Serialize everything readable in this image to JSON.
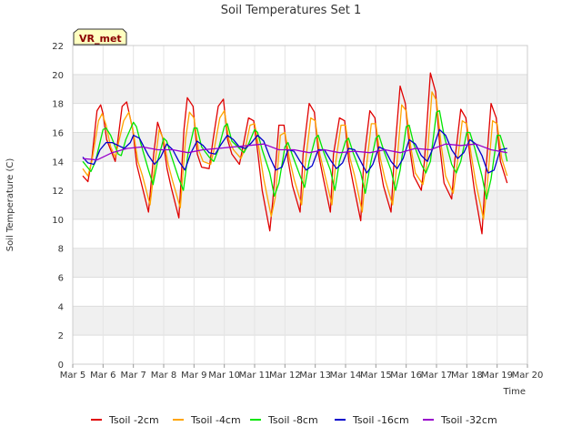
{
  "chart_data": {
    "type": "line",
    "title": "Soil Temperatures Set 1",
    "xlabel": "Time",
    "ylabel": "Soil Temperature (C)",
    "badge": "VR_met",
    "ylim": [
      0,
      22
    ],
    "yticks": [
      0,
      2,
      4,
      6,
      8,
      10,
      12,
      14,
      16,
      18,
      20,
      22
    ],
    "xlim": [
      5,
      20
    ],
    "xticks": [
      {
        "value": 5,
        "label": "Mar 5"
      },
      {
        "value": 6,
        "label": "Mar 6"
      },
      {
        "value": 7,
        "label": "Mar 7"
      },
      {
        "value": 8,
        "label": "Mar 8"
      },
      {
        "value": 9,
        "label": "Mar 9"
      },
      {
        "value": 10,
        "label": "Mar 10"
      },
      {
        "value": 11,
        "label": "Mar 11"
      },
      {
        "value": 12,
        "label": "Mar 12"
      },
      {
        "value": 13,
        "label": "Mar 13"
      },
      {
        "value": 14,
        "label": "Mar 14"
      },
      {
        "value": 15,
        "label": "Mar 15"
      },
      {
        "value": 16,
        "label": "Mar 16"
      },
      {
        "value": 17,
        "label": "Mar 17"
      },
      {
        "value": 18,
        "label": "Mar 18"
      },
      {
        "value": 19,
        "label": "Mar 19"
      },
      {
        "value": 20,
        "label": "Mar 20"
      }
    ],
    "grid": true,
    "legend_position": "bottom",
    "series": [
      {
        "name": "Tsoil -2cm",
        "color": "#e00000",
        "x": [
          5.33,
          5.5,
          5.63,
          5.8,
          5.92,
          6.0,
          6.12,
          6.4,
          6.63,
          6.78,
          6.98,
          7.11,
          7.25,
          7.5,
          7.67,
          7.8,
          7.97,
          8.11,
          8.25,
          8.5,
          8.67,
          8.78,
          8.97,
          9.11,
          9.25,
          9.5,
          9.63,
          9.8,
          9.97,
          10.11,
          10.25,
          10.5,
          10.63,
          10.8,
          10.97,
          11.11,
          11.25,
          11.5,
          11.6,
          11.8,
          11.97,
          12.11,
          12.25,
          12.5,
          12.6,
          12.8,
          12.97,
          13.11,
          13.25,
          13.5,
          13.6,
          13.8,
          13.97,
          14.11,
          14.25,
          14.5,
          14.6,
          14.8,
          14.97,
          15.11,
          15.25,
          15.5,
          15.6,
          15.8,
          15.97,
          16.11,
          16.25,
          16.5,
          16.6,
          16.8,
          16.97,
          17.11,
          17.25,
          17.5,
          17.6,
          17.8,
          17.97,
          18.11,
          18.25,
          18.5,
          18.6,
          18.8,
          18.97,
          19.11,
          19.33
        ],
        "y": [
          13.0,
          12.6,
          14.2,
          17.5,
          17.9,
          17.3,
          15.5,
          14.0,
          17.8,
          18.1,
          16.2,
          13.8,
          12.6,
          10.5,
          14.5,
          16.7,
          15.6,
          13.5,
          12.2,
          10.1,
          16.2,
          18.4,
          17.8,
          14.5,
          13.6,
          13.5,
          15.5,
          17.8,
          18.3,
          15.5,
          14.5,
          13.8,
          15.2,
          17.0,
          16.8,
          14.5,
          12.0,
          9.2,
          11.3,
          16.5,
          16.5,
          14.0,
          12.3,
          10.5,
          14.5,
          18.0,
          17.4,
          14.5,
          13.0,
          10.5,
          14.5,
          17.0,
          16.8,
          14.0,
          12.5,
          9.9,
          14.0,
          17.5,
          17.0,
          14.0,
          12.3,
          10.5,
          14.0,
          19.2,
          18.0,
          15.0,
          13.0,
          12.0,
          14.0,
          20.1,
          18.8,
          15.0,
          12.5,
          11.4,
          14.0,
          17.6,
          17.0,
          14.2,
          12.0,
          9.0,
          12.5,
          18.0,
          17.0,
          14.0,
          12.5
        ]
      },
      {
        "name": "Tsoil -4cm",
        "color": "#ffa500",
        "x": [
          5.33,
          5.5,
          5.63,
          5.85,
          5.97,
          6.1,
          6.25,
          6.4,
          6.68,
          6.85,
          7.0,
          7.15,
          7.3,
          7.55,
          7.72,
          7.85,
          8.0,
          8.15,
          8.3,
          8.55,
          8.72,
          8.85,
          9.0,
          9.15,
          9.3,
          9.55,
          9.68,
          9.85,
          10.0,
          10.15,
          10.3,
          10.55,
          10.7,
          10.85,
          11.0,
          11.15,
          11.3,
          11.55,
          11.68,
          11.85,
          12.0,
          12.15,
          12.3,
          12.55,
          12.68,
          12.85,
          13.0,
          13.15,
          13.3,
          13.55,
          13.68,
          13.85,
          14.0,
          14.15,
          14.3,
          14.55,
          14.68,
          14.85,
          15.0,
          15.15,
          15.3,
          15.55,
          15.68,
          15.85,
          16.0,
          16.15,
          16.3,
          16.55,
          16.68,
          16.85,
          17.0,
          17.15,
          17.3,
          17.55,
          17.68,
          17.85,
          18.0,
          18.15,
          18.3,
          18.55,
          18.68,
          18.85,
          19.0,
          19.15,
          19.33
        ],
        "y": [
          13.5,
          13.0,
          14.0,
          16.8,
          17.3,
          16.5,
          15.0,
          14.3,
          16.8,
          17.4,
          16.0,
          14.0,
          13.0,
          11.0,
          14.0,
          16.2,
          15.5,
          13.8,
          12.6,
          10.8,
          15.5,
          17.4,
          17.0,
          14.8,
          14.0,
          13.8,
          15.0,
          17.0,
          17.5,
          15.5,
          14.8,
          14.2,
          15.0,
          16.5,
          16.6,
          14.8,
          12.8,
          10.2,
          11.5,
          15.8,
          16.0,
          14.2,
          12.8,
          11.0,
          14.0,
          17.0,
          16.8,
          14.5,
          13.2,
          11.0,
          14.0,
          16.5,
          16.5,
          14.2,
          13.0,
          10.5,
          13.5,
          16.6,
          16.6,
          14.2,
          12.8,
          11.0,
          13.5,
          17.9,
          17.5,
          15.0,
          13.2,
          12.4,
          13.8,
          18.8,
          18.2,
          15.2,
          13.0,
          11.8,
          13.8,
          16.8,
          16.6,
          14.4,
          12.5,
          10.0,
          12.5,
          16.8,
          16.6,
          14.2,
          13.0
        ]
      },
      {
        "name": "Tsoil -8cm",
        "color": "#00e600",
        "x": [
          5.33,
          5.6,
          5.75,
          6.0,
          6.1,
          6.25,
          6.5,
          6.6,
          6.75,
          7.0,
          7.1,
          7.25,
          7.5,
          7.65,
          7.8,
          8.0,
          8.1,
          8.25,
          8.5,
          8.65,
          8.8,
          9.0,
          9.1,
          9.25,
          9.5,
          9.65,
          9.8,
          10.0,
          10.1,
          10.25,
          10.5,
          10.65,
          10.8,
          11.0,
          11.1,
          11.25,
          11.5,
          11.65,
          11.8,
          12.0,
          12.1,
          12.25,
          12.5,
          12.65,
          12.8,
          13.0,
          13.1,
          13.25,
          13.5,
          13.65,
          13.8,
          14.0,
          14.1,
          14.25,
          14.5,
          14.65,
          14.8,
          15.0,
          15.1,
          15.25,
          15.5,
          15.65,
          15.8,
          16.0,
          16.1,
          16.25,
          16.5,
          16.65,
          16.8,
          17.0,
          17.1,
          17.25,
          17.5,
          17.65,
          17.8,
          18.0,
          18.1,
          18.25,
          18.5,
          18.65,
          18.8,
          19.0,
          19.1,
          19.25,
          19.33
        ],
        "y": [
          14.0,
          13.3,
          14.0,
          16.2,
          16.3,
          15.8,
          14.5,
          14.4,
          15.5,
          16.7,
          16.4,
          15.2,
          13.4,
          12.4,
          14.0,
          15.6,
          15.4,
          14.4,
          12.8,
          12.0,
          14.5,
          16.3,
          16.3,
          15.0,
          14.3,
          14.0,
          14.8,
          16.4,
          16.6,
          15.4,
          14.9,
          14.6,
          15.2,
          16.2,
          16.0,
          14.8,
          13.2,
          11.6,
          12.5,
          15.0,
          15.3,
          14.4,
          13.0,
          12.2,
          14.0,
          15.6,
          15.8,
          14.8,
          13.4,
          12.0,
          14.0,
          15.4,
          15.6,
          14.6,
          13.2,
          11.8,
          13.6,
          15.6,
          15.8,
          14.8,
          13.4,
          12.0,
          13.4,
          16.4,
          16.5,
          15.2,
          13.8,
          13.2,
          14.0,
          17.4,
          17.5,
          15.8,
          13.8,
          13.2,
          14.0,
          16.0,
          16.0,
          15.0,
          13.0,
          11.4,
          12.8,
          15.8,
          15.8,
          14.8,
          14.0
        ]
      },
      {
        "name": "Tsoil -16cm",
        "color": "#0000cc",
        "x": [
          5.33,
          5.5,
          5.7,
          5.9,
          6.1,
          6.3,
          6.5,
          6.7,
          6.9,
          7.0,
          7.2,
          7.5,
          7.7,
          7.9,
          8.1,
          8.3,
          8.5,
          8.7,
          8.9,
          9.1,
          9.3,
          9.5,
          9.7,
          9.9,
          10.1,
          10.3,
          10.5,
          10.7,
          10.9,
          11.1,
          11.3,
          11.5,
          11.7,
          11.9,
          12.1,
          12.3,
          12.5,
          12.7,
          12.9,
          13.1,
          13.3,
          13.5,
          13.7,
          13.9,
          14.1,
          14.3,
          14.5,
          14.7,
          14.9,
          15.1,
          15.3,
          15.5,
          15.7,
          15.9,
          16.1,
          16.3,
          16.5,
          16.7,
          16.9,
          17.1,
          17.3,
          17.5,
          17.7,
          17.9,
          18.1,
          18.3,
          18.5,
          18.7,
          18.9,
          19.1,
          19.33
        ],
        "y": [
          14.3,
          13.9,
          13.8,
          14.8,
          15.3,
          15.3,
          15.1,
          14.9,
          15.3,
          15.8,
          15.6,
          14.4,
          13.8,
          14.3,
          15.2,
          14.8,
          14.0,
          13.4,
          14.6,
          15.4,
          15.1,
          14.6,
          14.5,
          15.2,
          15.8,
          15.5,
          15.0,
          14.9,
          15.3,
          15.8,
          15.4,
          14.3,
          13.4,
          13.6,
          14.8,
          14.7,
          14.0,
          13.4,
          13.7,
          14.8,
          14.8,
          14.1,
          13.5,
          13.9,
          14.9,
          14.8,
          14.0,
          13.2,
          13.8,
          15.0,
          14.8,
          14.0,
          13.5,
          14.2,
          15.5,
          15.2,
          14.4,
          14.0,
          15.0,
          16.2,
          15.8,
          14.8,
          14.2,
          14.6,
          15.5,
          15.2,
          14.4,
          13.2,
          13.4,
          14.8,
          14.9
        ]
      },
      {
        "name": "Tsoil -32cm",
        "color": "#9900cc",
        "x": [
          5.33,
          5.8,
          6.3,
          6.8,
          7.3,
          7.8,
          8.3,
          8.8,
          9.3,
          9.8,
          10.3,
          10.8,
          11.3,
          11.8,
          12.3,
          12.8,
          13.3,
          13.8,
          14.3,
          14.8,
          15.3,
          15.8,
          16.3,
          16.8,
          17.3,
          17.8,
          18.3,
          18.8,
          19.33
        ],
        "y": [
          14.2,
          14.1,
          14.6,
          14.9,
          15.0,
          14.8,
          14.8,
          14.6,
          14.8,
          14.9,
          15.0,
          15.1,
          15.2,
          14.8,
          14.8,
          14.6,
          14.8,
          14.6,
          14.7,
          14.6,
          14.8,
          14.6,
          14.9,
          14.8,
          15.2,
          15.1,
          15.2,
          14.8,
          14.6
        ]
      }
    ]
  }
}
